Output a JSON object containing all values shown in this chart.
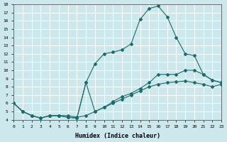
{
  "xlabel": "Humidex (Indice chaleur)",
  "xlim": [
    0,
    23
  ],
  "ylim": [
    4,
    18
  ],
  "xticks": [
    0,
    1,
    2,
    3,
    4,
    5,
    6,
    7,
    8,
    9,
    10,
    11,
    12,
    13,
    14,
    15,
    16,
    17,
    18,
    19,
    20,
    21,
    22,
    23
  ],
  "yticks": [
    4,
    5,
    6,
    7,
    8,
    9,
    10,
    11,
    12,
    13,
    14,
    15,
    16,
    17,
    18
  ],
  "background_color": "#cce8ec",
  "grid_color": "#b0d8dc",
  "line_color": "#1a6b6b",
  "curve1_x": [
    0,
    1,
    2,
    3,
    4,
    5,
    6,
    7,
    8,
    9,
    10,
    11,
    12,
    13,
    14,
    15,
    16,
    17,
    18,
    19,
    20,
    21,
    22,
    23
  ],
  "curve1_y": [
    6.0,
    5.0,
    4.5,
    4.2,
    4.5,
    4.5,
    4.3,
    4.2,
    8.5,
    10.8,
    12.0,
    12.2,
    12.5,
    13.2,
    16.2,
    17.5,
    17.8,
    16.5,
    14.0,
    12.0,
    11.8,
    9.5,
    8.8,
    8.5
  ],
  "curve2_x": [
    0,
    1,
    2,
    3,
    4,
    5,
    6,
    7,
    8,
    9,
    10,
    11,
    12,
    13,
    14,
    15,
    16,
    17,
    18,
    19,
    20,
    21,
    22,
    23
  ],
  "curve2_y": [
    6.0,
    5.0,
    4.5,
    4.2,
    4.5,
    4.5,
    4.3,
    4.2,
    8.5,
    5.0,
    5.5,
    6.2,
    6.8,
    7.2,
    7.8,
    8.5,
    9.5,
    9.5,
    9.5,
    10.0,
    10.0,
    9.5,
    8.8,
    8.5
  ],
  "curve3_x": [
    0,
    1,
    2,
    3,
    4,
    5,
    6,
    7,
    8,
    9,
    10,
    11,
    12,
    13,
    14,
    15,
    16,
    17,
    18,
    19,
    20,
    21,
    22,
    23
  ],
  "curve3_y": [
    6.0,
    5.0,
    4.5,
    4.2,
    4.5,
    4.5,
    4.5,
    4.3,
    4.5,
    5.0,
    5.5,
    6.0,
    6.5,
    7.0,
    7.5,
    8.0,
    8.3,
    8.5,
    8.6,
    8.7,
    8.5,
    8.3,
    8.0,
    8.3
  ]
}
